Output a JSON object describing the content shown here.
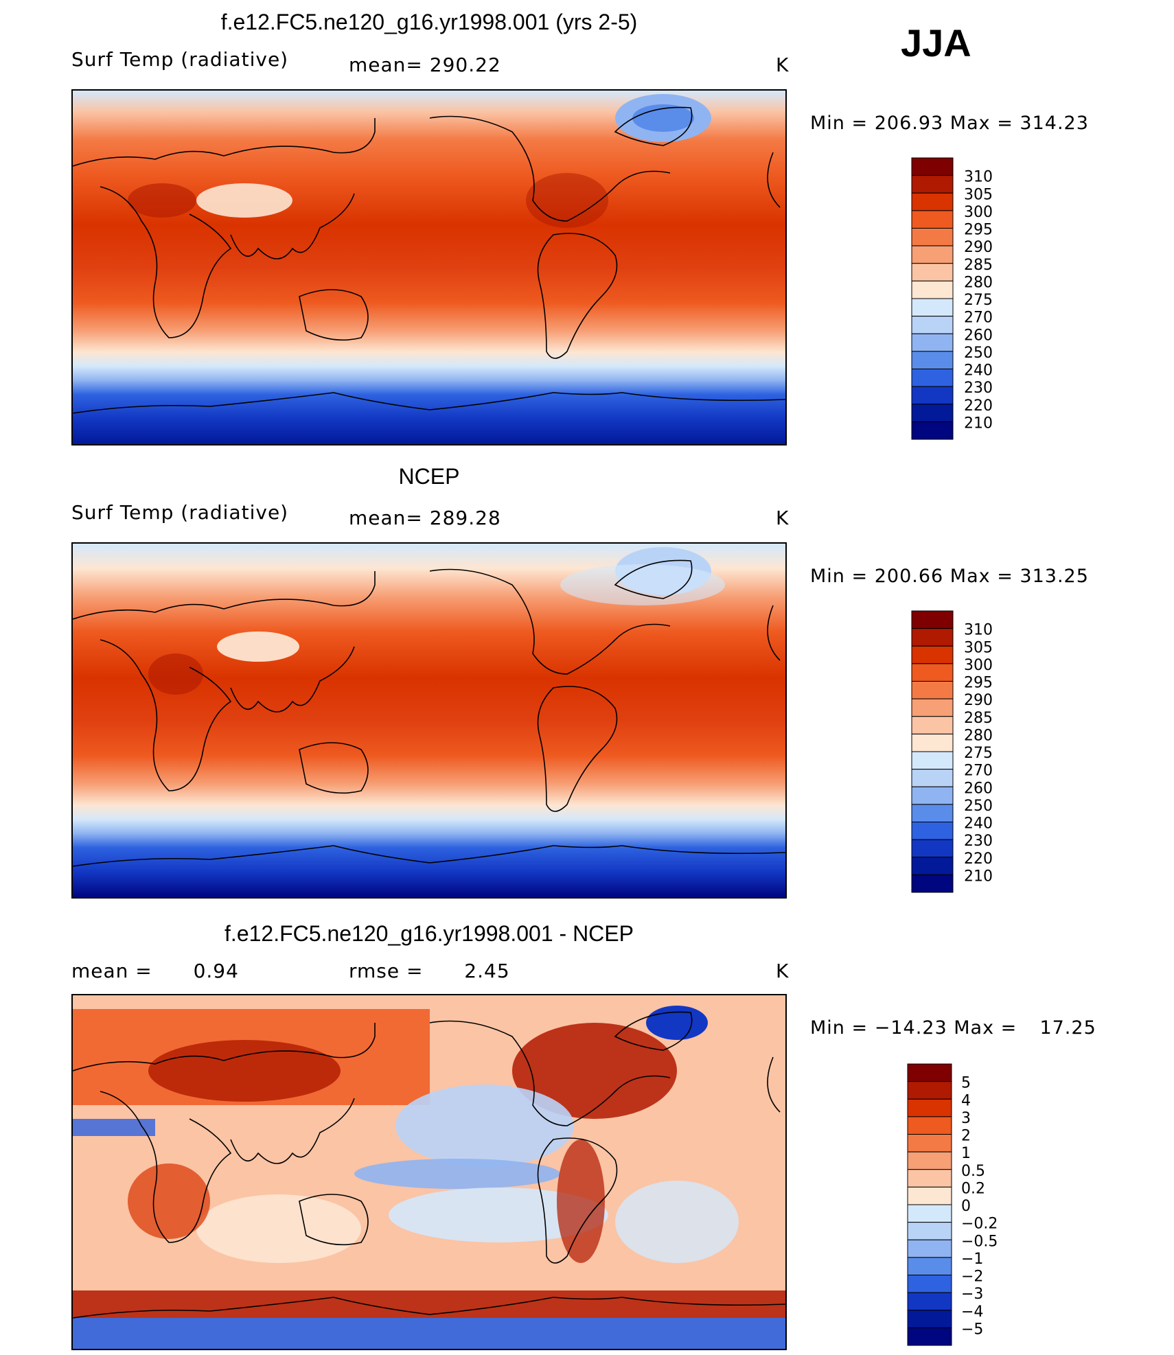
{
  "season": "JJA",
  "panels": [
    {
      "title": "f.e12.FC5.ne120_g16.yr1998.001 (yrs 2-5)",
      "variable": "Surf Temp (radiative)",
      "stat_label": "mean=",
      "stat_value": "290.22",
      "units": "K",
      "min_label": "Min =",
      "min_value": "206.93",
      "max_label": "Max =",
      "max_value": "314.23",
      "colorbar": {
        "labels": [
          "310",
          "305",
          "300",
          "295",
          "290",
          "285",
          "280",
          "275",
          "270",
          "260",
          "250",
          "240",
          "230",
          "220",
          "210"
        ],
        "colors": [
          "#7f0000",
          "#b01a00",
          "#d93300",
          "#ee5a20",
          "#f47a45",
          "#f79f75",
          "#fac4a5",
          "#fde6d2",
          "#d4e8fb",
          "#b9d3f7",
          "#8fb4f1",
          "#5a8cea",
          "#2e62e0",
          "#1237c3",
          "#02199a",
          "#000580"
        ]
      }
    },
    {
      "title": "NCEP",
      "variable": "Surf Temp (radiative)",
      "stat_label": "mean=",
      "stat_value": "289.28",
      "units": "K",
      "min_label": "Min =",
      "min_value": "200.66",
      "max_label": "Max =",
      "max_value": "313.25",
      "colorbar": {
        "labels": [
          "310",
          "305",
          "300",
          "295",
          "290",
          "285",
          "280",
          "275",
          "270",
          "260",
          "250",
          "240",
          "230",
          "220",
          "210"
        ],
        "colors": [
          "#7f0000",
          "#b01a00",
          "#d93300",
          "#ee5a20",
          "#f47a45",
          "#f79f75",
          "#fac4a5",
          "#fde6d2",
          "#d4e8fb",
          "#b9d3f7",
          "#8fb4f1",
          "#5a8cea",
          "#2e62e0",
          "#1237c3",
          "#02199a",
          "#000580"
        ]
      }
    },
    {
      "title": "f.e12.FC5.ne120_g16.yr1998.001 - NCEP",
      "stat_label": "mean =",
      "stat_value": "0.94",
      "stat2_label": "rmse =",
      "stat2_value": "2.45",
      "units": "K",
      "min_label": "Min =",
      "min_value": "−14.23",
      "max_label": "Max =",
      "max_value": "17.25",
      "colorbar": {
        "labels": [
          "5",
          "4",
          "3",
          "2",
          "1",
          "0.5",
          "0.2",
          "0",
          "−0.2",
          "−0.5",
          "−1",
          "−2",
          "−3",
          "−4",
          "−5"
        ],
        "colors": [
          "#7f0000",
          "#b01a00",
          "#d93300",
          "#ee5a20",
          "#f47a45",
          "#f79f75",
          "#fac4a5",
          "#fde6d2",
          "#d4e8fb",
          "#b9d3f7",
          "#8fb4f1",
          "#5a8cea",
          "#2e62e0",
          "#1237c3",
          "#02199a",
          "#000580"
        ]
      }
    }
  ]
}
